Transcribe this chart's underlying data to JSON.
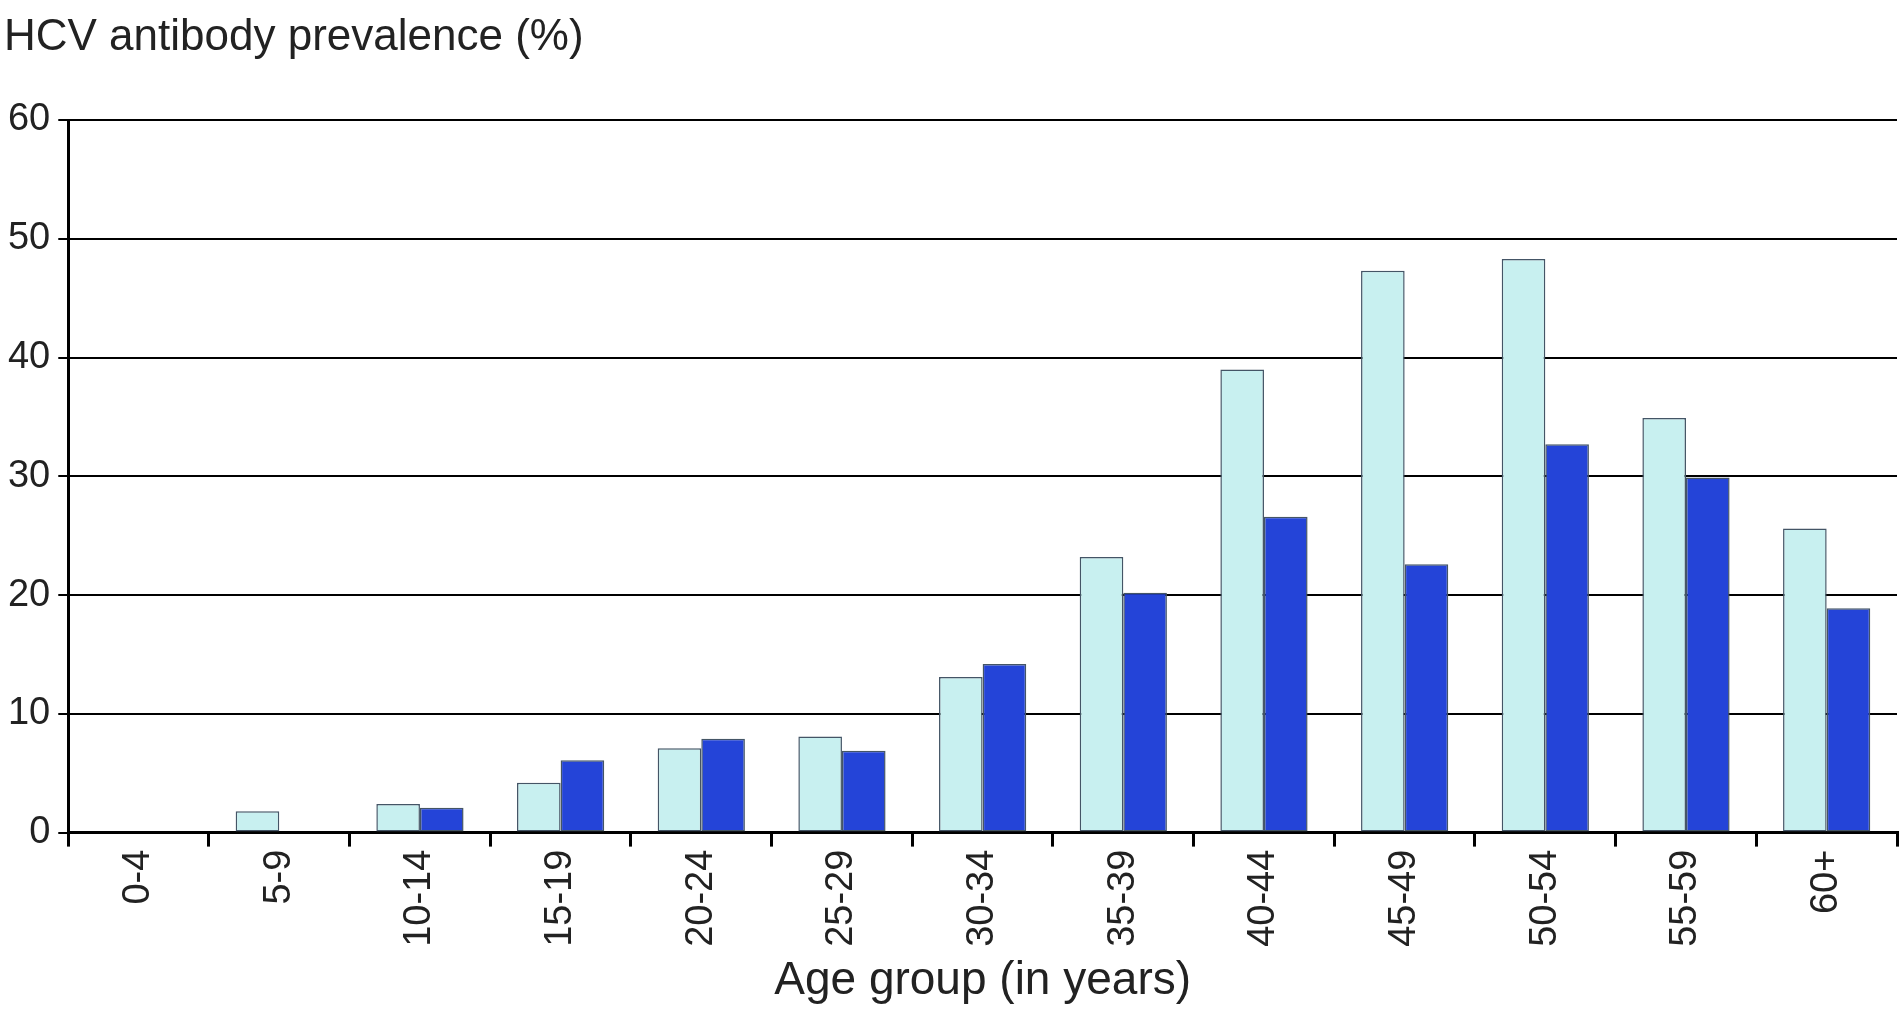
{
  "chart_data": {
    "type": "bar",
    "ylabel": "HCV antibody prevalence (%)",
    "xlabel": "Age group (in years)",
    "categories": [
      "0-4",
      "5-9",
      "10-14",
      "15-19",
      "20-24",
      "25-29",
      "30-34",
      "35-39",
      "40-44",
      "45-49",
      "50-54",
      "55-59",
      "60+"
    ],
    "series": [
      {
        "color": "#c8f0f0",
        "values": [
          0,
          1.8,
          2.4,
          4.2,
          7.1,
          8.1,
          13.1,
          23.2,
          39,
          47.3,
          48.3,
          34.9,
          25.6
        ]
      },
      {
        "color": "#2444d8",
        "values": [
          0,
          0,
          2.1,
          6.1,
          7.9,
          6.9,
          14.2,
          20.2,
          26.6,
          22.6,
          32.7,
          29.9,
          18.9
        ]
      }
    ],
    "ylim": [
      0,
      60
    ],
    "yticks": [
      0,
      10,
      20,
      30,
      40,
      50,
      60
    ],
    "grid": "y",
    "legend": false
  }
}
